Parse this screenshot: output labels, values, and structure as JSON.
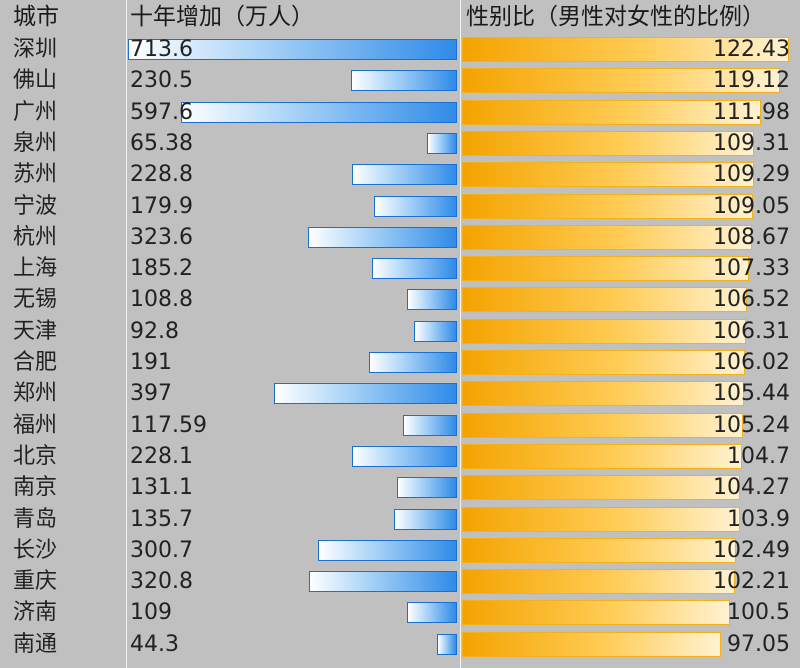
{
  "chart_data": {
    "type": "table",
    "columns": [
      "城市",
      "十年增加（万人）",
      "性别比（男性对女性的比例）"
    ],
    "rows": [
      {
        "city": "深圳",
        "increase": "713.6",
        "ratio": "122.43"
      },
      {
        "city": "佛山",
        "increase": "230.5",
        "ratio": "119.12"
      },
      {
        "city": "广州",
        "increase": "597.6",
        "ratio": "111.98"
      },
      {
        "city": "泉州",
        "increase": "65.38",
        "ratio": "109.31"
      },
      {
        "city": "苏州",
        "increase": "228.8",
        "ratio": "109.29"
      },
      {
        "city": "宁波",
        "increase": "179.9",
        "ratio": "109.05"
      },
      {
        "city": "杭州",
        "increase": "323.6",
        "ratio": "108.67"
      },
      {
        "city": "上海",
        "increase": "185.2",
        "ratio": "107.33"
      },
      {
        "city": "无锡",
        "increase": "108.8",
        "ratio": "106.52"
      },
      {
        "city": "天津",
        "increase": "92.8",
        "ratio": "106.31"
      },
      {
        "city": "合肥",
        "increase": "191",
        "ratio": "106.02"
      },
      {
        "city": "郑州",
        "increase": "397",
        "ratio": "105.44"
      },
      {
        "city": "福州",
        "increase": "117.59",
        "ratio": "105.24"
      },
      {
        "city": "北京",
        "increase": "228.1",
        "ratio": "104.7"
      },
      {
        "city": "南京",
        "increase": "131.1",
        "ratio": "104.27"
      },
      {
        "city": "青岛",
        "increase": "135.7",
        "ratio": "103.9"
      },
      {
        "city": "长沙",
        "increase": "300.7",
        "ratio": "102.49"
      },
      {
        "city": "重庆",
        "increase": "320.8",
        "ratio": "102.21"
      },
      {
        "city": "济南",
        "increase": "109",
        "ratio": "100.5"
      },
      {
        "city": "南通",
        "increase": "44.3",
        "ratio": "97.05"
      }
    ],
    "increase_bar_max": 713.6,
    "ratio_bar_max": 122.43,
    "colors": {
      "background": "#c0c0c0",
      "increase_bar_border": "#1a6fd0",
      "increase_bar_fill_end": "#2f8be8",
      "ratio_bar_border": "#f2b21c",
      "ratio_bar_fill_start": "#f4a300"
    }
  }
}
